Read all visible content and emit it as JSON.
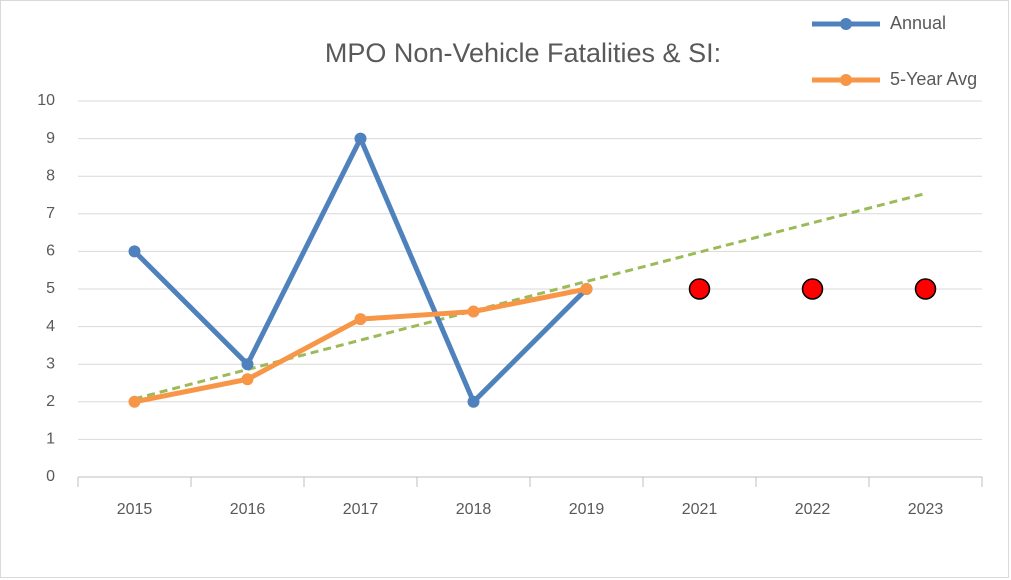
{
  "chart_data": {
    "type": "line",
    "title": "MPO Non-Vehicle Fatalities & SI:",
    "categories": [
      "2015",
      "2016",
      "2017",
      "2018",
      "2019",
      "2021",
      "2022",
      "2023"
    ],
    "series": [
      {
        "name": "Annual",
        "color": "#4f81bd",
        "values": [
          6,
          3,
          9,
          2,
          5,
          null,
          null,
          null
        ]
      },
      {
        "name": "5-Year Avg",
        "color": "#f79646",
        "values": [
          2,
          2.6,
          4.2,
          4.4,
          5,
          null,
          null,
          null
        ]
      },
      {
        "color": "#ff0000",
        "marker_only": true,
        "values": [
          null,
          null,
          null,
          null,
          null,
          5,
          5,
          5
        ]
      }
    ],
    "trendline": {
      "color": "#9bbb59",
      "values": [
        2.08,
        7.54
      ]
    },
    "ylim": [
      0,
      10
    ],
    "yticks": [
      0,
      1,
      2,
      3,
      4,
      5,
      6,
      7,
      8,
      9,
      10
    ],
    "grid": true,
    "legend": "top-right"
  }
}
